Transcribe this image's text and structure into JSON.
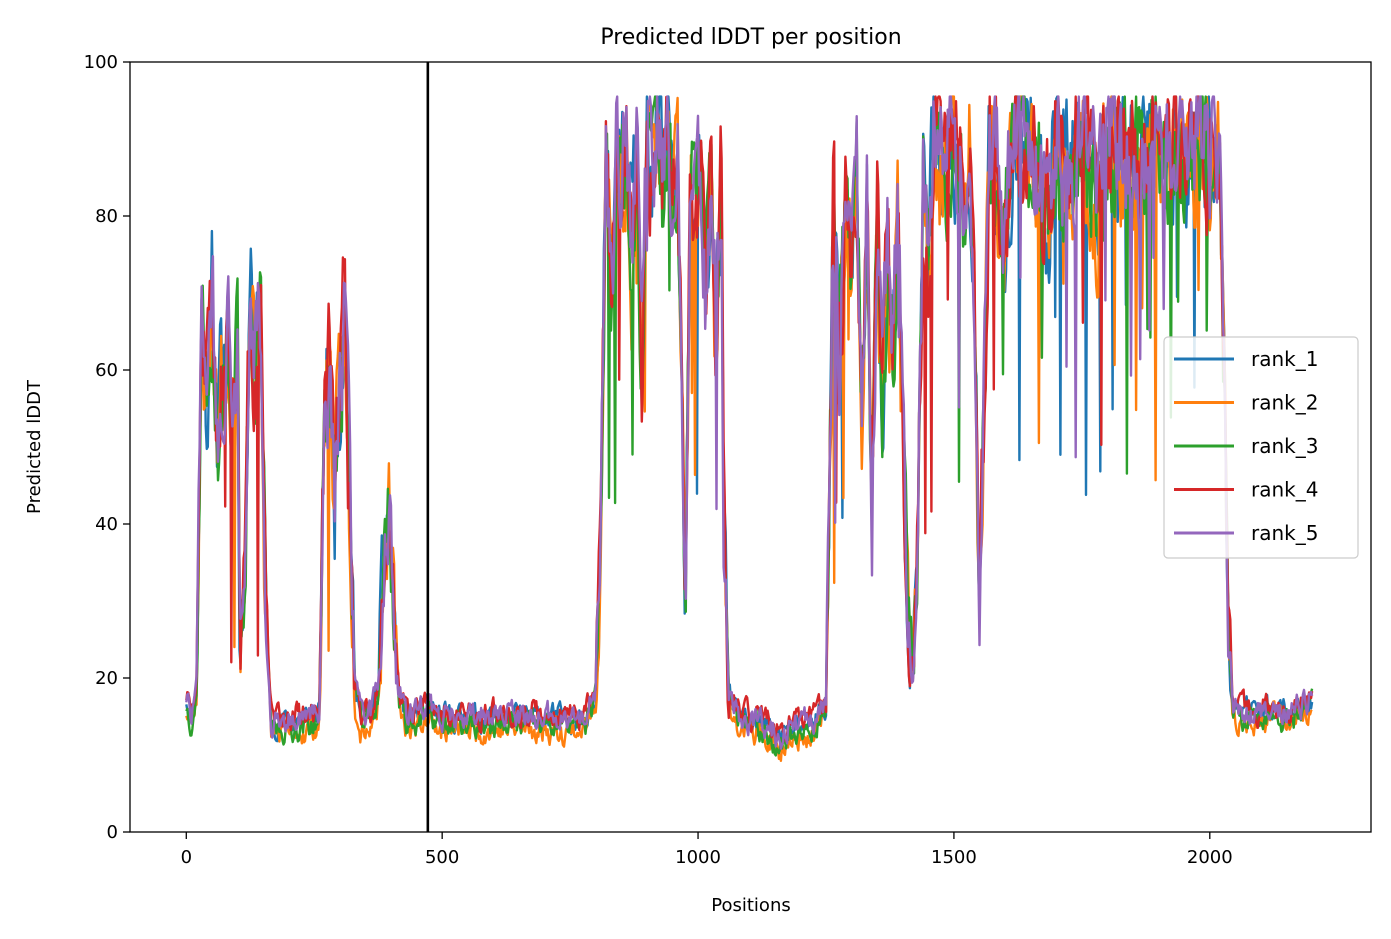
{
  "chart_data": {
    "type": "line",
    "title": "Predicted lDDT per position",
    "xlabel": "Positions",
    "ylabel": "Predicted lDDT",
    "xlim": [
      -110,
      2315
    ],
    "ylim": [
      0,
      100
    ],
    "xticks": [
      0,
      500,
      1000,
      1500,
      2000
    ],
    "yticks": [
      0,
      20,
      40,
      60,
      80,
      100
    ],
    "vline_x": 472,
    "grid": false,
    "legend_position": "center-right",
    "profile": [
      [
        0,
        17
      ],
      [
        10,
        15
      ],
      [
        20,
        18
      ],
      [
        30,
        68
      ],
      [
        40,
        55
      ],
      [
        50,
        70
      ],
      [
        60,
        52
      ],
      [
        70,
        60
      ],
      [
        80,
        66
      ],
      [
        90,
        60
      ],
      [
        100,
        62
      ],
      [
        105,
        22
      ],
      [
        115,
        35
      ],
      [
        125,
        70
      ],
      [
        135,
        58
      ],
      [
        145,
        66
      ],
      [
        155,
        30
      ],
      [
        165,
        14
      ],
      [
        200,
        14
      ],
      [
        240,
        14.5
      ],
      [
        260,
        15
      ],
      [
        270,
        55
      ],
      [
        280,
        62
      ],
      [
        290,
        45
      ],
      [
        300,
        58
      ],
      [
        310,
        68
      ],
      [
        320,
        40
      ],
      [
        330,
        20
      ],
      [
        340,
        15
      ],
      [
        360,
        15
      ],
      [
        375,
        18
      ],
      [
        385,
        35
      ],
      [
        395,
        42
      ],
      [
        405,
        30
      ],
      [
        415,
        18
      ],
      [
        430,
        15
      ],
      [
        450,
        15
      ],
      [
        470,
        16
      ],
      [
        500,
        14.5
      ],
      [
        600,
        14.5
      ],
      [
        700,
        14.5
      ],
      [
        780,
        14.5
      ],
      [
        800,
        18
      ],
      [
        810,
        40
      ],
      [
        820,
        90
      ],
      [
        830,
        70
      ],
      [
        840,
        88
      ],
      [
        850,
        82
      ],
      [
        860,
        91
      ],
      [
        870,
        75
      ],
      [
        880,
        90
      ],
      [
        890,
        60
      ],
      [
        900,
        92
      ],
      [
        910,
        82
      ],
      [
        920,
        93
      ],
      [
        930,
        85
      ],
      [
        940,
        92
      ],
      [
        950,
        80
      ],
      [
        960,
        88
      ],
      [
        970,
        50
      ],
      [
        975,
        28
      ],
      [
        985,
        85
      ],
      [
        995,
        78
      ],
      [
        1005,
        88
      ],
      [
        1015,
        70
      ],
      [
        1025,
        82
      ],
      [
        1035,
        65
      ],
      [
        1045,
        85
      ],
      [
        1050,
        40
      ],
      [
        1060,
        18
      ],
      [
        1080,
        14.5
      ],
      [
        1120,
        14
      ],
      [
        1160,
        12
      ],
      [
        1180,
        13
      ],
      [
        1220,
        14
      ],
      [
        1250,
        16
      ],
      [
        1265,
        82
      ],
      [
        1275,
        60
      ],
      [
        1290,
        86
      ],
      [
        1300,
        70
      ],
      [
        1310,
        82
      ],
      [
        1320,
        55
      ],
      [
        1330,
        80
      ],
      [
        1340,
        40
      ],
      [
        1350,
        78
      ],
      [
        1360,
        55
      ],
      [
        1370,
        75
      ],
      [
        1380,
        62
      ],
      [
        1390,
        80
      ],
      [
        1400,
        50
      ],
      [
        1410,
        30
      ],
      [
        1420,
        20
      ],
      [
        1430,
        40
      ],
      [
        1440,
        85
      ],
      [
        1450,
        70
      ],
      [
        1460,
        92
      ],
      [
        1480,
        86
      ],
      [
        1500,
        90
      ],
      [
        1520,
        82
      ],
      [
        1530,
        92
      ],
      [
        1540,
        70
      ],
      [
        1550,
        30
      ],
      [
        1560,
        60
      ],
      [
        1570,
        90
      ],
      [
        1600,
        80
      ],
      [
        1620,
        92
      ],
      [
        1650,
        88
      ],
      [
        1680,
        80
      ],
      [
        1700,
        90
      ],
      [
        1720,
        85
      ],
      [
        1750,
        90
      ],
      [
        1780,
        82
      ],
      [
        1800,
        90
      ],
      [
        1850,
        88
      ],
      [
        1900,
        90
      ],
      [
        1950,
        88
      ],
      [
        1980,
        90
      ],
      [
        2000,
        86
      ],
      [
        2010,
        90
      ],
      [
        2020,
        88
      ],
      [
        2025,
        70
      ],
      [
        2035,
        30
      ],
      [
        2045,
        16
      ],
      [
        2070,
        15
      ],
      [
        2100,
        15
      ],
      [
        2120,
        16
      ],
      [
        2150,
        15
      ],
      [
        2180,
        16
      ],
      [
        2200,
        17
      ]
    ],
    "series": [
      {
        "name": "rank_1",
        "color": "#1f77b4",
        "seed": 11,
        "offset": 0.3
      },
      {
        "name": "rank_2",
        "color": "#ff7f0e",
        "seed": 23,
        "offset": -1.2
      },
      {
        "name": "rank_3",
        "color": "#2ca02c",
        "seed": 37,
        "offset": -0.6
      },
      {
        "name": "rank_4",
        "color": "#d62728",
        "seed": 51,
        "offset": 0.8
      },
      {
        "name": "rank_5",
        "color": "#9467bd",
        "seed": 73,
        "offset": 0.5
      }
    ]
  }
}
